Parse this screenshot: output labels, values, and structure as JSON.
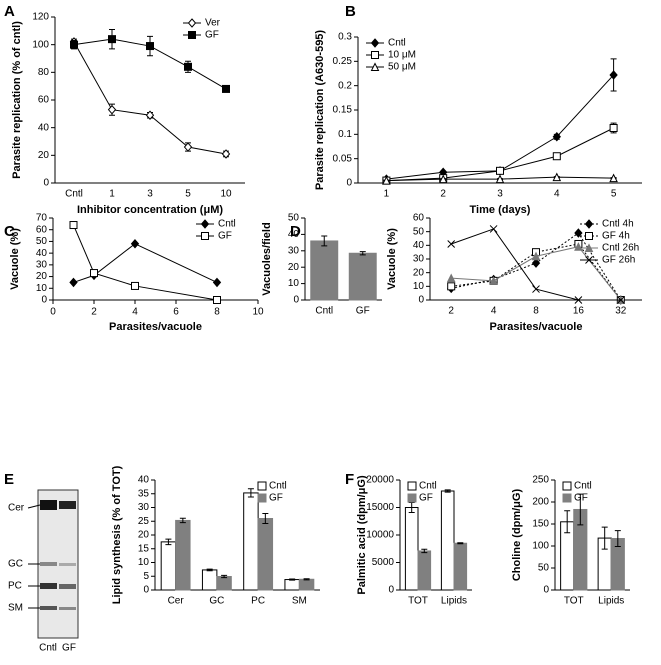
{
  "panel_labels": [
    "A",
    "B",
    "C",
    "D",
    "E",
    "F"
  ],
  "gel": {
    "bands": [
      "Cer",
      "GC",
      "PC",
      "SM"
    ],
    "lanes": [
      "Cntl",
      "GF"
    ]
  },
  "chart_data": [
    {
      "type": "line",
      "ylabel": "Parasite replication (% of cntl)",
      "xlabel": "Inhibitor concentration (μM)",
      "categories": [
        "Cntl",
        "1",
        "3",
        "5",
        "10"
      ],
      "ylim": [
        0,
        120
      ],
      "yticks": [
        0,
        20,
        40,
        60,
        80,
        100,
        120
      ],
      "legend": "upper right",
      "series": [
        {
          "name": "Ver",
          "color": "#000000",
          "marker": "diamond",
          "filled": false,
          "values": [
            102,
            53,
            49,
            26,
            21
          ],
          "errors": [
            2,
            4,
            2,
            3,
            2
          ]
        },
        {
          "name": "GF",
          "color": "#000000",
          "marker": "square",
          "filled": true,
          "values": [
            100,
            104,
            99,
            84,
            68
          ],
          "errors": [
            3,
            7,
            7,
            4,
            1
          ]
        }
      ]
    },
    {
      "type": "line",
      "ylabel": "Parasite replication (A630-595)",
      "xlabel": "Time (days)",
      "categories": [
        "1",
        "2",
        "3",
        "4",
        "5"
      ],
      "ylim": [
        0,
        0.3
      ],
      "yticks": [
        0,
        0.05,
        0.1,
        0.15,
        0.2,
        0.25,
        0.3
      ],
      "legend": "upper left",
      "series": [
        {
          "name": "Cntl",
          "color": "#000000",
          "marker": "diamond",
          "filled": true,
          "values": [
            0.008,
            0.022,
            0.025,
            0.095,
            0.222
          ],
          "errors": [
            0.002,
            0.002,
            0.002,
            0.005,
            0.033
          ]
        },
        {
          "name": "10 μM",
          "color": "#000000",
          "marker": "square",
          "filled": false,
          "values": [
            0.005,
            0.01,
            0.025,
            0.055,
            0.113
          ],
          "errors": [
            0.002,
            0.002,
            0.002,
            0.003,
            0.01
          ]
        },
        {
          "name": "50 μM",
          "color": "#000000",
          "marker": "triangle",
          "filled": false,
          "values": [
            0.005,
            0.008,
            0.008,
            0.012,
            0.01
          ],
          "errors": [
            0.001,
            0.001,
            0.001,
            0.001,
            0.001
          ]
        }
      ]
    },
    {
      "type": "line",
      "ylabel": "Vacuole (%)",
      "xlabel": "Parasites/vacuole",
      "x": [
        1,
        2,
        4,
        8
      ],
      "xlim": [
        0,
        10
      ],
      "xticks": [
        0,
        2,
        4,
        6,
        8,
        10
      ],
      "ylim": [
        0,
        70
      ],
      "yticks": [
        0,
        10,
        20,
        30,
        40,
        50,
        60,
        70
      ],
      "legend": "upper right",
      "series": [
        {
          "name": "Cntl",
          "color": "#000000",
          "marker": "diamond",
          "filled": true,
          "values": [
            15,
            21,
            48,
            15
          ]
        },
        {
          "name": "GF",
          "color": "#000000",
          "marker": "square",
          "filled": false,
          "values": [
            64,
            23,
            12,
            0
          ]
        }
      ]
    },
    {
      "type": "bar",
      "ylabel": "Vacuoles/field",
      "categories": [
        "Cntl",
        "GF"
      ],
      "values": [
        36,
        28.5
      ],
      "errors": [
        3,
        1
      ],
      "color": "#808080",
      "ylim": [
        0,
        50
      ],
      "yticks": [
        0,
        10,
        20,
        30,
        40,
        50
      ]
    },
    {
      "type": "line",
      "ylabel": "Vacuole (%)",
      "xlabel": "Parasites/vacuole",
      "categories": [
        "2",
        "4",
        "8",
        "16",
        "32"
      ],
      "ylim": [
        0,
        60
      ],
      "yticks": [
        0,
        10,
        20,
        30,
        40,
        50,
        60
      ],
      "legend": "upper right",
      "series": [
        {
          "name": "Cntl 4h",
          "color": "#000000",
          "marker": "diamond",
          "filled": true,
          "dashed": true,
          "values": [
            8.5,
            15,
            27,
            49,
            0
          ]
        },
        {
          "name": "GF 4h",
          "color": "#000000",
          "marker": "square",
          "filled": false,
          "dashed": true,
          "values": [
            10,
            14,
            35,
            41,
            0
          ]
        },
        {
          "name": "Cntl 26h",
          "color": "#777777",
          "marker": "triangle",
          "filled": true,
          "dashed": false,
          "values": [
            16,
            14,
            32,
            39,
            0
          ]
        },
        {
          "name": "GF 26h",
          "color": "#000000",
          "marker": "x",
          "filled": false,
          "dashed": false,
          "values": [
            41,
            52,
            8,
            0,
            0
          ]
        }
      ]
    },
    {
      "type": "bar",
      "ylabel": "Lipid synthesis (% of TOT)",
      "categories": [
        "Cer",
        "GC",
        "PC",
        "SM"
      ],
      "ylim": [
        0,
        40
      ],
      "yticks": [
        0,
        5,
        10,
        15,
        20,
        25,
        30,
        35,
        40
      ],
      "legend": "upper right",
      "series": [
        {
          "name": "Cntl",
          "color": "#ffffff",
          "values": [
            17.5,
            7.3,
            35.3,
            3.8
          ],
          "errors": [
            1,
            0.3,
            1.5,
            0.2
          ]
        },
        {
          "name": "GF",
          "color": "#808080",
          "values": [
            25.3,
            4.9,
            26,
            3.9
          ],
          "errors": [
            0.8,
            0.4,
            1.8,
            0.2
          ]
        }
      ]
    },
    {
      "type": "bar",
      "ylabel": "Palmitic acid (dpm/μG)",
      "categories": [
        "TOT",
        "Lipids"
      ],
      "ylim": [
        0,
        20000
      ],
      "yticks": [
        0,
        5000,
        10000,
        15000,
        20000
      ],
      "legend": "upper left",
      "series": [
        {
          "name": "Cntl",
          "color": "#ffffff",
          "values": [
            15000,
            18000
          ],
          "errors": [
            900,
            200
          ]
        },
        {
          "name": "GF",
          "color": "#808080",
          "values": [
            7100,
            8500
          ],
          "errors": [
            300,
            100
          ]
        }
      ]
    },
    {
      "type": "bar",
      "ylabel": "Choline (dpm/μG)",
      "categories": [
        "TOT",
        "Lipids"
      ],
      "ylim": [
        0,
        250
      ],
      "yticks": [
        0,
        50,
        100,
        150,
        200,
        250
      ],
      "legend": "upper left",
      "series": [
        {
          "name": "Cntl",
          "color": "#ffffff",
          "values": [
            155,
            118
          ],
          "errors": [
            25,
            25
          ]
        },
        {
          "name": "GF",
          "color": "#808080",
          "values": [
            183,
            117
          ],
          "errors": [
            35,
            18
          ]
        }
      ]
    }
  ]
}
